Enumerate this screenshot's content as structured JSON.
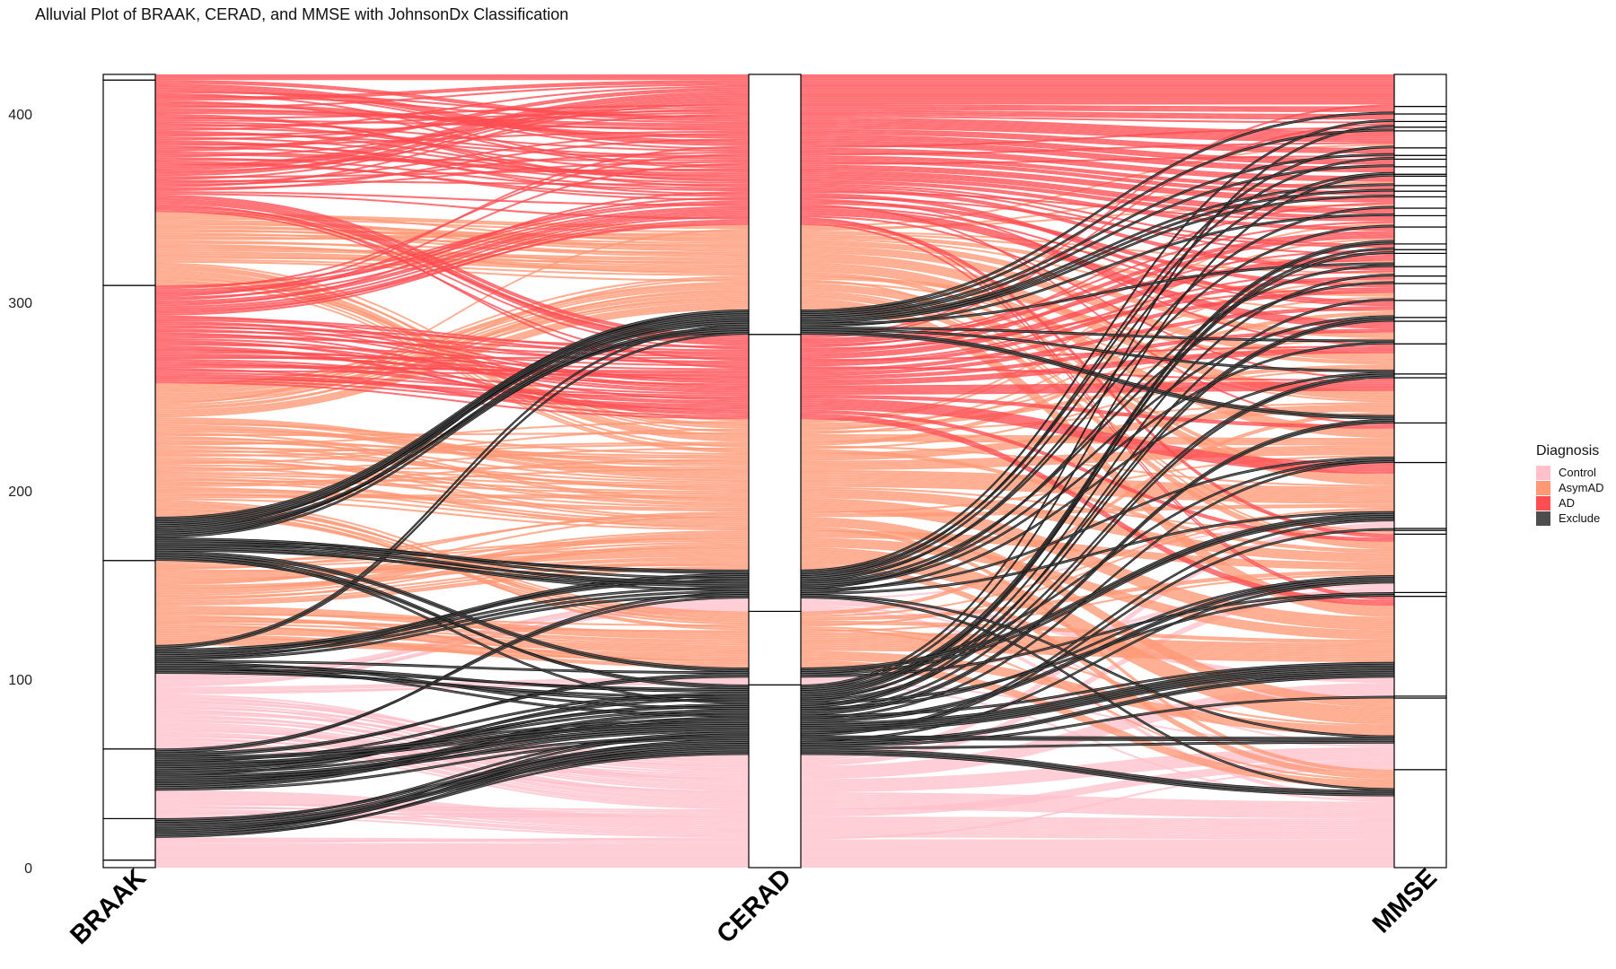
{
  "chart_data": {
    "type": "alluvial",
    "title": "Alluvial Plot of BRAAK, CERAD, and MMSE with JohnsonDx Classification",
    "xlabel": "",
    "ylabel": "",
    "ylim": [
      0,
      421
    ],
    "yticks": [
      0,
      100,
      200,
      300,
      400
    ],
    "grid": false,
    "legend_position": "right",
    "legend": {
      "title": "Diagnosis",
      "entries": [
        "Control",
        "AsymAD",
        "AD",
        "Exclude"
      ]
    },
    "diagnosis_order": [
      "Control",
      "Exclude",
      "AsymAD",
      "AD"
    ],
    "colors": {
      "Control": "#FFC0CB",
      "AsymAD": "#FF9875",
      "AD": "#FF4D52",
      "Exclude": "#4D4D4D"
    },
    "axes": [
      {
        "name": "BRAAK",
        "strata_counts_by_diagnosis": [
          [
            4,
            0,
            0,
            0
          ],
          [
            12,
            10,
            0,
            0
          ],
          [
            15,
            22,
            0,
            0
          ],
          [
            40,
            15,
            45,
            0
          ],
          [
            0,
            23,
            71,
            52
          ],
          [
            0,
            0,
            39,
            70
          ],
          [
            0,
            0,
            0,
            3
          ]
        ]
      },
      {
        "name": "CERAD",
        "strata_counts_by_diagnosis": [
          [
            60,
            37,
            0,
            0
          ],
          [
            4,
            5,
            30,
            0
          ],
          [
            7,
            15,
            80,
            45
          ],
          [
            0,
            13,
            45,
            80
          ]
        ]
      },
      {
        "name": "MMSE",
        "strata_counts_by_diagnosis": [
          [
            38,
            4,
            10,
            0
          ],
          [
            14,
            4,
            20,
            0
          ],
          [
            0,
            1,
            0,
            0
          ],
          [
            10,
            8,
            30,
            5
          ],
          [
            0,
            2,
            0,
            0
          ],
          [
            5,
            4,
            18,
            4
          ],
          [
            0,
            0,
            2,
            0
          ],
          [
            0,
            1,
            0,
            0
          ],
          [
            4,
            5,
            20,
            6
          ],
          [
            0,
            3,
            15,
            3
          ],
          [
            0,
            4,
            13,
            7
          ],
          [
            0,
            2,
            0,
            0
          ],
          [
            0,
            2,
            9,
            5
          ],
          [
            0,
            2,
            4,
            6
          ],
          [
            0,
            2,
            0,
            0
          ],
          [
            0,
            1,
            3,
            5
          ],
          [
            0,
            1,
            3,
            5
          ],
          [
            0,
            1,
            1,
            2
          ],
          [
            0,
            1,
            1,
            3
          ],
          [
            0,
            2,
            1,
            4
          ],
          [
            0,
            1,
            0,
            1
          ],
          [
            0,
            1,
            0,
            2
          ],
          [
            0,
            2,
            1,
            6
          ],
          [
            0,
            1,
            1,
            4
          ],
          [
            0,
            1,
            0,
            3
          ],
          [
            0,
            1,
            1,
            4
          ],
          [
            0,
            1,
            0,
            2
          ],
          [
            0,
            1,
            0,
            2
          ],
          [
            0,
            1,
            1,
            3
          ],
          [
            0,
            1,
            0,
            0
          ],
          [
            0,
            1,
            0,
            3
          ],
          [
            0,
            1,
            0,
            3
          ],
          [
            0,
            1,
            0,
            1
          ],
          [
            0,
            1,
            0,
            3
          ],
          [
            0,
            1,
            1,
            7
          ],
          [
            0,
            1,
            0,
            1
          ],
          [
            0,
            1,
            0,
            2
          ],
          [
            0,
            1,
            0,
            3
          ],
          [
            0,
            1,
            0,
            3
          ],
          [
            0,
            0,
            0,
            17
          ]
        ]
      }
    ]
  }
}
